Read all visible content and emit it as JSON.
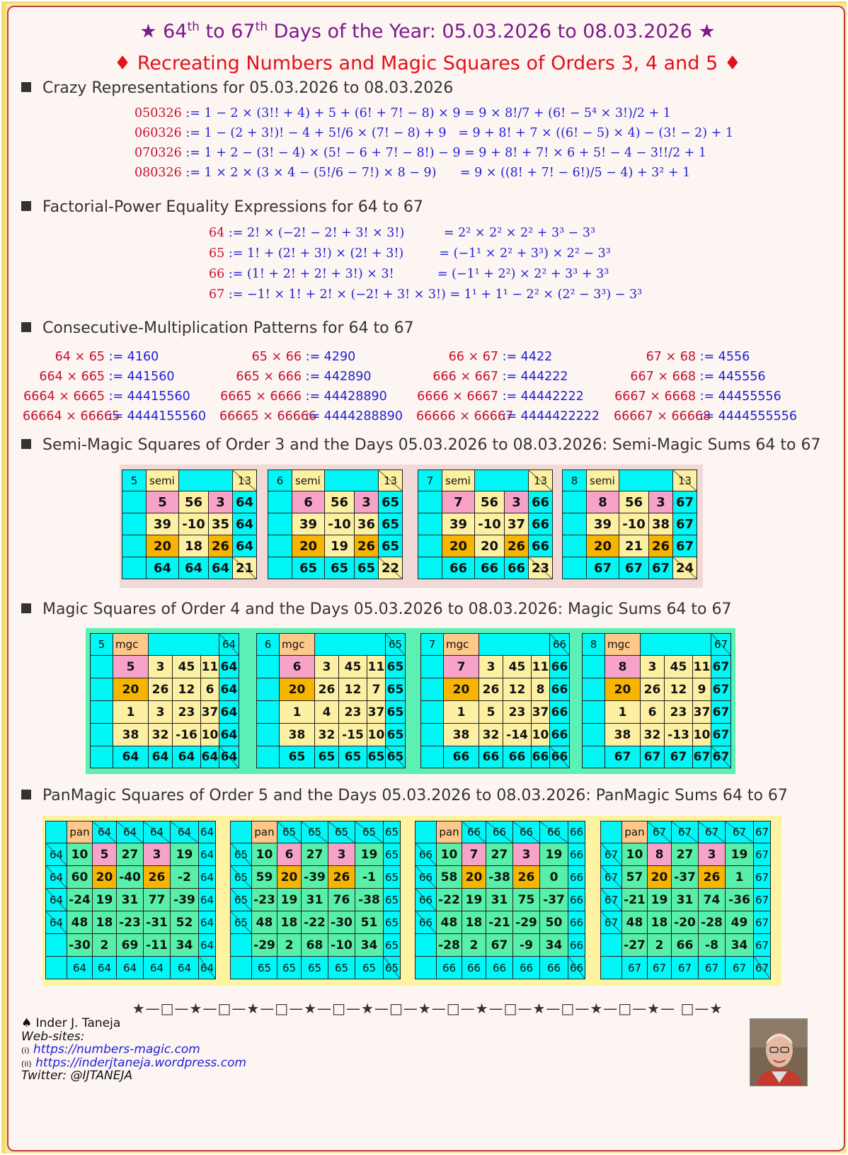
{
  "header": {
    "title_pre": "★ 64",
    "title_sup1": "th",
    "title_mid": " to 67",
    "title_sup2": "th",
    "title_post": " Days of the Year: 05.03.2026 to 08.03.2026 ★",
    "subtitle": "♦ Recreating Numbers and Magic Squares of Orders 3, 4 and 5 ♦"
  },
  "sections": {
    "crazy": "Crazy Representations for 05.03.2026 to 08.03.2026",
    "factorial": "Factorial-Power Equality Expressions for 64 to 67",
    "consecutive": "Consecutive-Multiplication Patterns for 64 to 67",
    "semi": "Semi-Magic Squares of Order 3 and the Days 05.03.2026 to 08.03.2026: Semi-Magic Sums 64 to 67",
    "magic": "Magic Squares of Order 4 and the Days 05.03.2026 to 08.03.2026: Magic Sums 64 to 67",
    "pan": "PanMagic Squares of Order 5 and the Days 05.03.2026 to 08.03.2026: PanMagic Sums 64 to 67"
  },
  "crazy": [
    {
      "num": "050326",
      "lhs": " := 1 − 2 × (3!! + 4) + 5 + (6! + 7! − 8) × 9 ",
      "rhs": "= 9 × 8!/7 + (6! − 5⁴ × 3!)/2 + 1"
    },
    {
      "num": "060326",
      "lhs": " := 1 − (2 + 3!)! − 4 + 5!/6 × (7! − 8) + 9   ",
      "rhs": "= 9 + 8! + 7 × ((6! − 5) × 4) − (3! − 2) + 1"
    },
    {
      "num": "070326",
      "lhs": " := 1 + 2 − (3! − 4) × (5! − 6 + 7! − 8!) − 9 ",
      "rhs": "= 9 + 8! + 7! × 6 + 5! − 4 − 3!!/2 + 1"
    },
    {
      "num": "080326",
      "lhs": " := 1 × 2 × (3 × 4 − (5!/6 − 7!) × 8 − 9)      ",
      "rhs": "= 9 × ((8! + 7! − 6!)/5 − 4) + 3² + 1"
    }
  ],
  "factorial": [
    {
      "num": "64",
      "lhs": " := 2! × (−2! − 2! + 3! × 3!)          ",
      "rhs": "= 2² × 2² × 2² + 3³ − 3³"
    },
    {
      "num": "65",
      "lhs": " := 1! + (2! + 3!) × (2! + 3!)         ",
      "rhs": "= (−1¹ × 2² + 3³) × 2² − 3³"
    },
    {
      "num": "66",
      "lhs": " := (1! + 2! + 2! + 3!) × 3!           ",
      "rhs": "= (−1¹ + 2²) × 2² + 3³ + 3³"
    },
    {
      "num": "67",
      "lhs": " := −1! × 1! + 2! × (−2! + 3! × 3!) ",
      "rhs": "= 1¹ + 1¹ − 2² × (2² − 3³) − 3³"
    }
  ],
  "multiplication": [
    [
      {
        "a": "64 × 65",
        "b": ":= 4160"
      },
      {
        "a": "664 × 665",
        "b": ":= 441560"
      },
      {
        "a": "6664 × 6665",
        "b": ":= 44415560"
      },
      {
        "a": "66664 × 66665",
        "b": ":= 4444155560"
      }
    ],
    [
      {
        "a": "65 × 66",
        "b": ":= 4290"
      },
      {
        "a": "665 × 666",
        "b": ":= 442890"
      },
      {
        "a": "6665 × 6666",
        "b": ":= 44428890"
      },
      {
        "a": "66665 × 66666",
        "b": ":= 4444288890"
      }
    ],
    [
      {
        "a": "66 × 67",
        "b": ":= 4422"
      },
      {
        "a": "666 × 667",
        "b": ":= 444222"
      },
      {
        "a": "6666 × 6667",
        "b": ":= 44442222"
      },
      {
        "a": "66666 × 66667",
        "b": ":= 4444422222"
      }
    ],
    [
      {
        "a": "67 × 68",
        "b": ":= 4556"
      },
      {
        "a": "667 × 668",
        "b": ":= 445556"
      },
      {
        "a": "6667 × 6668",
        "b": ":= 44455556"
      },
      {
        "a": "66667 × 66668",
        "b": ":= 4444555556"
      }
    ]
  ],
  "semi_squares": [
    {
      "day": "5",
      "label": "semi",
      "corner": "13",
      "rows": [
        [
          "5",
          "56",
          "3"
        ],
        [
          "39",
          "-10",
          "35"
        ],
        [
          "20",
          "18",
          "26"
        ]
      ],
      "sum": "64",
      "diag": "21"
    },
    {
      "day": "6",
      "label": "semi",
      "corner": "13",
      "rows": [
        [
          "6",
          "56",
          "3"
        ],
        [
          "39",
          "-10",
          "36"
        ],
        [
          "20",
          "19",
          "26"
        ]
      ],
      "sum": "65",
      "diag": "22"
    },
    {
      "day": "7",
      "label": "semi",
      "corner": "13",
      "rows": [
        [
          "7",
          "56",
          "3"
        ],
        [
          "39",
          "-10",
          "37"
        ],
        [
          "20",
          "20",
          "26"
        ]
      ],
      "sum": "66",
      "diag": "23"
    },
    {
      "day": "8",
      "label": "semi",
      "corner": "13",
      "rows": [
        [
          "8",
          "56",
          "3"
        ],
        [
          "39",
          "-10",
          "38"
        ],
        [
          "20",
          "21",
          "26"
        ]
      ],
      "sum": "67",
      "diag": "24"
    }
  ],
  "magic_squares": [
    {
      "day": "5",
      "label": "mgc",
      "sum": "64",
      "rows": [
        [
          "5",
          "3",
          "45",
          "11"
        ],
        [
          "20",
          "26",
          "12",
          "6"
        ],
        [
          "1",
          "3",
          "23",
          "37"
        ],
        [
          "38",
          "32",
          "-16",
          "10"
        ]
      ]
    },
    {
      "day": "6",
      "label": "mgc",
      "sum": "65",
      "rows": [
        [
          "6",
          "3",
          "45",
          "11"
        ],
        [
          "20",
          "26",
          "12",
          "7"
        ],
        [
          "1",
          "4",
          "23",
          "37"
        ],
        [
          "38",
          "32",
          "-15",
          "10"
        ]
      ]
    },
    {
      "day": "7",
      "label": "mgc",
      "sum": "66",
      "rows": [
        [
          "7",
          "3",
          "45",
          "11"
        ],
        [
          "20",
          "26",
          "12",
          "8"
        ],
        [
          "1",
          "5",
          "23",
          "37"
        ],
        [
          "38",
          "32",
          "-14",
          "10"
        ]
      ]
    },
    {
      "day": "8",
      "label": "mgc",
      "sum": "67",
      "rows": [
        [
          "8",
          "3",
          "45",
          "11"
        ],
        [
          "20",
          "26",
          "12",
          "9"
        ],
        [
          "1",
          "6",
          "23",
          "37"
        ],
        [
          "38",
          "32",
          "-13",
          "10"
        ]
      ]
    }
  ],
  "pan_squares": [
    {
      "label": "pan",
      "sum": "64",
      "rows": [
        [
          "10",
          "5",
          "27",
          "3",
          "19"
        ],
        [
          "60",
          "20",
          "-40",
          "26",
          "-2"
        ],
        [
          "-24",
          "19",
          "31",
          "77",
          "-39"
        ],
        [
          "48",
          "18",
          "-23",
          "-31",
          "52"
        ],
        [
          "-30",
          "2",
          "69",
          "-11",
          "34"
        ]
      ]
    },
    {
      "label": "pan",
      "sum": "65",
      "rows": [
        [
          "10",
          "6",
          "27",
          "3",
          "19"
        ],
        [
          "59",
          "20",
          "-39",
          "26",
          "-1"
        ],
        [
          "-23",
          "19",
          "31",
          "76",
          "-38"
        ],
        [
          "48",
          "18",
          "-22",
          "-30",
          "51"
        ],
        [
          "-29",
          "2",
          "68",
          "-10",
          "34"
        ]
      ]
    },
    {
      "label": "pan",
      "sum": "66",
      "rows": [
        [
          "10",
          "7",
          "27",
          "3",
          "19"
        ],
        [
          "58",
          "20",
          "-38",
          "26",
          "0"
        ],
        [
          "-22",
          "19",
          "31",
          "75",
          "-37"
        ],
        [
          "48",
          "18",
          "-21",
          "-29",
          "50"
        ],
        [
          "-28",
          "2",
          "67",
          "-9",
          "34"
        ]
      ]
    },
    {
      "label": "pan",
      "sum": "67",
      "rows": [
        [
          "10",
          "8",
          "27",
          "3",
          "19"
        ],
        [
          "57",
          "20",
          "-37",
          "26",
          "1"
        ],
        [
          "-21",
          "19",
          "31",
          "74",
          "-36"
        ],
        [
          "48",
          "18",
          "-20",
          "-28",
          "49"
        ],
        [
          "-27",
          "2",
          "66",
          "-8",
          "34"
        ]
      ]
    }
  ],
  "stars": "★—□—★—□—★—□—★—□—★—□—★—□—★—□—★—□—★—□—★— □—★",
  "footer": {
    "author": "♠ Inder J. Taneja",
    "websites": "Web-sites:",
    "i": "(i)",
    "link1": "https://numbers-magic.com",
    "ii": "(ii)",
    "link2": "https://inderjtaneja.wordpress.com",
    "twitter": "Twitter: @IJTANEJA"
  },
  "colors": {
    "cyan": "#00f7f5",
    "pink": "#f7a3c8",
    "orange": "#f7b500",
    "green": "#58f0a8",
    "yellow": "#fdf0a3",
    "title_purple": "#7b1a8c",
    "title_red": "#e0121b"
  }
}
